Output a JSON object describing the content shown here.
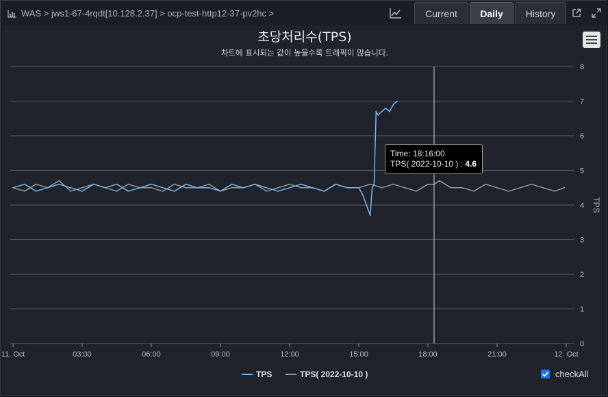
{
  "header": {
    "breadcrumb": "WAS > jws1-67-4rqdt[10.128.2.37] > ocp-test-http12-37-pv2hc >",
    "tabs": [
      {
        "label": "Current",
        "active": false
      },
      {
        "label": "Daily",
        "active": true
      },
      {
        "label": "History",
        "active": false
      }
    ]
  },
  "tooltip": {
    "time_label": "Time:",
    "time_value": "18:16:00",
    "series_label": "TPS( 2022-10-10 ) :",
    "series_value": "4.6"
  },
  "controls": {
    "check_all_label": "checkAll",
    "check_all_checked": true
  },
  "colors": {
    "tps": "#7cb5ec",
    "tps_prev": "#9a9a9a",
    "background": "#20232c",
    "grid": "#5a5e66"
  },
  "chart_data": {
    "type": "line",
    "title": "초당처리수(TPS)",
    "subtitle": "차트에 표시되는 값이 높을수록 트래픽이 많습니다.",
    "ylabel": "TPS",
    "y_axis_side": "right",
    "ylim": [
      0,
      8
    ],
    "yticks": [
      "0",
      "1",
      "2",
      "3",
      "4",
      "5",
      "6",
      "7",
      "8"
    ],
    "xlim": [
      "11. Oct 00:00",
      "12. Oct 00:00"
    ],
    "xticks": [
      "11. Oct",
      "03:00",
      "06:00",
      "09:00",
      "12:00",
      "15:00",
      "18:00",
      "21:00",
      "12. Oct"
    ],
    "grid": true,
    "legend_position": "bottom-center",
    "crosshair_time": "18:16",
    "series": [
      {
        "name": "TPS",
        "color": "#7cb5ec",
        "x": [
          "00:00",
          "00:30",
          "01:00",
          "01:30",
          "02:00",
          "02:30",
          "03:00",
          "03:30",
          "04:00",
          "04:30",
          "05:00",
          "05:30",
          "06:00",
          "06:30",
          "07:00",
          "07:30",
          "08:00",
          "08:30",
          "09:00",
          "09:30",
          "10:00",
          "10:30",
          "11:00",
          "11:30",
          "12:00",
          "12:30",
          "13:00",
          "13:30",
          "14:00",
          "14:30",
          "15:00",
          "15:10",
          "15:20",
          "15:30",
          "15:35",
          "15:40",
          "15:45",
          "15:50",
          "16:00",
          "16:10",
          "16:20",
          "16:30",
          "16:40"
        ],
        "values": [
          4.5,
          4.6,
          4.4,
          4.5,
          4.6,
          4.5,
          4.4,
          4.6,
          4.5,
          4.6,
          4.4,
          4.5,
          4.6,
          4.5,
          4.4,
          4.6,
          4.5,
          4.5,
          4.4,
          4.6,
          4.5,
          4.6,
          4.5,
          4.4,
          4.5,
          4.6,
          4.5,
          4.4,
          4.6,
          4.5,
          4.5,
          4.3,
          4.0,
          3.7,
          4.5,
          4.6,
          6.7,
          6.6,
          6.7,
          6.8,
          6.7,
          6.9,
          7.0
        ]
      },
      {
        "name": "TPS( 2022-10-10 )",
        "color": "#9a9a9a",
        "x": [
          "00:00",
          "00:30",
          "01:00",
          "01:30",
          "02:00",
          "02:30",
          "03:00",
          "03:30",
          "04:00",
          "04:30",
          "05:00",
          "05:30",
          "06:00",
          "06:30",
          "07:00",
          "07:30",
          "08:00",
          "08:30",
          "09:00",
          "09:30",
          "10:00",
          "10:30",
          "11:00",
          "11:30",
          "12:00",
          "12:30",
          "13:00",
          "13:30",
          "14:00",
          "14:30",
          "15:00",
          "15:30",
          "16:00",
          "16:30",
          "17:00",
          "17:30",
          "18:00",
          "18:16",
          "18:30",
          "19:00",
          "19:30",
          "20:00",
          "20:30",
          "21:00",
          "21:30",
          "22:00",
          "22:30",
          "23:00",
          "23:30",
          "23:55"
        ],
        "values": [
          4.5,
          4.4,
          4.6,
          4.5,
          4.7,
          4.4,
          4.5,
          4.6,
          4.5,
          4.4,
          4.6,
          4.5,
          4.5,
          4.4,
          4.6,
          4.5,
          4.5,
          4.6,
          4.4,
          4.5,
          4.5,
          4.6,
          4.4,
          4.5,
          4.6,
          4.5,
          4.5,
          4.4,
          4.6,
          4.5,
          4.5,
          4.6,
          4.5,
          4.6,
          4.5,
          4.4,
          4.6,
          4.6,
          4.7,
          4.5,
          4.5,
          4.4,
          4.6,
          4.5,
          4.4,
          4.5,
          4.6,
          4.5,
          4.4,
          4.5
        ]
      }
    ]
  }
}
